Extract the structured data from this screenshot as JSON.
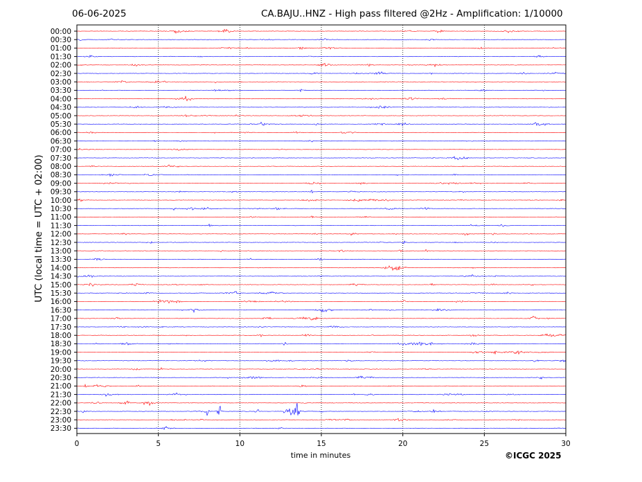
{
  "header": {
    "date": "06-06-2025",
    "title": "CA.BAJU..HNZ - High pass filtered @2Hz - Amplification: 1/10000"
  },
  "copyright": "©ICGC 2025",
  "colors": {
    "red": "#ff0000",
    "blue": "#0000ff",
    "grid": "#000000"
  },
  "chart_data": {
    "type": "line",
    "title": "CA.BAJU..HNZ - High pass filtered @2Hz - Amplification: 1/10000",
    "xlabel": "time in minutes",
    "ylabel": "UTC (local time = UTC + 02:00)",
    "xlim": [
      0,
      30
    ],
    "x_ticks": [
      0,
      5,
      10,
      15,
      20,
      25,
      30
    ],
    "x_tick_labels": [
      "0",
      "5",
      "10",
      "15",
      "20",
      "25",
      "30"
    ],
    "grid": "vertical dotted at 5, 10, 15, 20, 25",
    "series_color_pattern": "alternating red / blue by hourly pair",
    "rows": [
      {
        "label": "00:00",
        "color": "red"
      },
      {
        "label": "00:30",
        "color": "blue"
      },
      {
        "label": "01:00",
        "color": "red"
      },
      {
        "label": "01:30",
        "color": "blue"
      },
      {
        "label": "02:00",
        "color": "red"
      },
      {
        "label": "02:30",
        "color": "blue"
      },
      {
        "label": "03:00",
        "color": "red"
      },
      {
        "label": "03:30",
        "color": "blue"
      },
      {
        "label": "04:00",
        "color": "red"
      },
      {
        "label": "04:30",
        "color": "blue"
      },
      {
        "label": "05:00",
        "color": "red"
      },
      {
        "label": "05:30",
        "color": "blue"
      },
      {
        "label": "06:00",
        "color": "red"
      },
      {
        "label": "06:30",
        "color": "blue"
      },
      {
        "label": "07:00",
        "color": "red"
      },
      {
        "label": "07:30",
        "color": "blue"
      },
      {
        "label": "08:00",
        "color": "red"
      },
      {
        "label": "08:30",
        "color": "blue"
      },
      {
        "label": "09:00",
        "color": "red"
      },
      {
        "label": "09:30",
        "color": "blue"
      },
      {
        "label": "10:00",
        "color": "red"
      },
      {
        "label": "10:30",
        "color": "blue"
      },
      {
        "label": "11:00",
        "color": "red"
      },
      {
        "label": "11:30",
        "color": "blue"
      },
      {
        "label": "12:00",
        "color": "red"
      },
      {
        "label": "12:30",
        "color": "blue"
      },
      {
        "label": "13:00",
        "color": "red"
      },
      {
        "label": "13:30",
        "color": "blue"
      },
      {
        "label": "14:00",
        "color": "red"
      },
      {
        "label": "14:30",
        "color": "blue"
      },
      {
        "label": "15:00",
        "color": "red"
      },
      {
        "label": "15:30",
        "color": "blue"
      },
      {
        "label": "16:00",
        "color": "red"
      },
      {
        "label": "16:30",
        "color": "blue"
      },
      {
        "label": "17:00",
        "color": "red"
      },
      {
        "label": "17:30",
        "color": "blue"
      },
      {
        "label": "18:00",
        "color": "red"
      },
      {
        "label": "18:30",
        "color": "blue"
      },
      {
        "label": "19:00",
        "color": "red"
      },
      {
        "label": "19:30",
        "color": "blue"
      },
      {
        "label": "20:00",
        "color": "red"
      },
      {
        "label": "20:30",
        "color": "blue"
      },
      {
        "label": "21:00",
        "color": "red"
      },
      {
        "label": "21:30",
        "color": "blue"
      },
      {
        "label": "22:00",
        "color": "red"
      },
      {
        "label": "22:30",
        "color": "blue"
      },
      {
        "label": "23:00",
        "color": "red"
      },
      {
        "label": "23:30",
        "color": "blue"
      }
    ]
  }
}
